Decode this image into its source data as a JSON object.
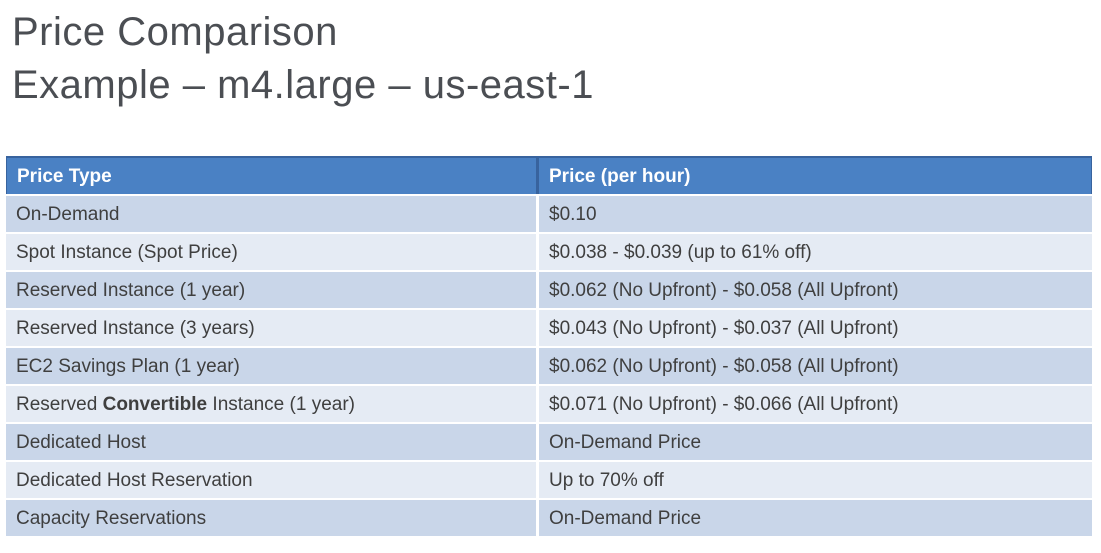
{
  "title": {
    "line1": "Price Comparison",
    "line2": "Example – m4.large – us-east-1"
  },
  "table": {
    "columns": [
      "Price Type",
      "Price (per hour)"
    ],
    "rows": [
      {
        "type": "On-Demand",
        "price": "$0.10"
      },
      {
        "type": "Spot Instance (Spot Price)",
        "price": "$0.038 - $0.039 (up to 61% off)"
      },
      {
        "type": "Reserved Instance (1 year)",
        "price": "$0.062 (No Upfront) - $0.058 (All Upfront)"
      },
      {
        "type": "Reserved Instance (3 years)",
        "price": "$0.043 (No Upfront) - $0.037 (All Upfront)"
      },
      {
        "type": "EC2 Savings Plan (1 year)",
        "price": "$0.062 (No Upfront) - $0.058 (All Upfront)"
      },
      {
        "type_prefix": "Reserved ",
        "type_bold": "Convertible",
        "type_suffix": " Instance (1 year)",
        "price": "$0.071 (No Upfront) - $0.066 (All Upfront)"
      },
      {
        "type": "Dedicated Host",
        "price": "On-Demand Price"
      },
      {
        "type": "Dedicated Host Reservation",
        "price": "Up to 70% off"
      },
      {
        "type": "Capacity Reservations",
        "price": "On-Demand Price"
      }
    ]
  },
  "colors": {
    "header_bg": "#4a81c4",
    "header_border": "#38639e",
    "band_dark": "#c9d6e9",
    "band_light": "#e5ebf4",
    "cell_text": "#3f3f3f",
    "title_text": "#4b4e53",
    "header_text": "#ffffff"
  }
}
